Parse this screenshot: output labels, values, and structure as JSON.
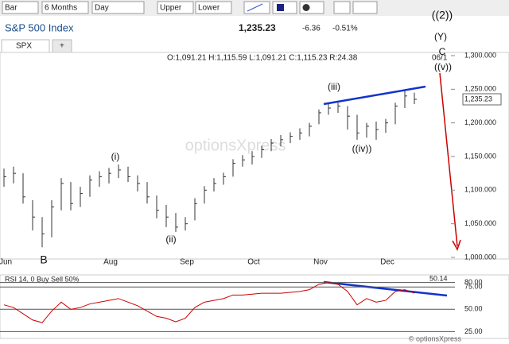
{
  "toolbar": {
    "dropdowns": [
      "Bar",
      "6 Months",
      "Day",
      "Upper",
      "Lower"
    ]
  },
  "header": {
    "title": "S&P 500 Index",
    "last": "1,235.23",
    "change": "-6.36",
    "change_pct": "-0.51%",
    "tab": "SPX",
    "tab_add": "+"
  },
  "watermark": "optionsXpress",
  "footer": "© optionsXpress",
  "chart_data": [
    {
      "type": "ohlc",
      "info": "O:1,091.21 H:1,115.59 L:1,091.21 C:1,115.23 R:24.38",
      "date_label": "06/1",
      "color": "#333333",
      "categories": [
        "Jun",
        null,
        null,
        null,
        null,
        null,
        null,
        null,
        null,
        null,
        null,
        "Aug",
        null,
        null,
        null,
        null,
        null,
        null,
        null,
        "Sep",
        null,
        null,
        null,
        null,
        null,
        null,
        "Oct",
        null,
        null,
        null,
        null,
        null,
        null,
        "Nov",
        null,
        null,
        null,
        null,
        null,
        null,
        "Dec",
        null,
        null,
        null
      ],
      "high": [
        1132,
        1135,
        1125,
        1085,
        1060,
        1085,
        1118,
        1112,
        1105,
        1122,
        1128,
        1133,
        1138,
        1135,
        1122,
        1112,
        1092,
        1078,
        1066,
        1060,
        1088,
        1106,
        1118,
        1126,
        1146,
        1152,
        1158,
        1166,
        1176,
        1182,
        1186,
        1192,
        1200,
        1220,
        1228,
        1230,
        1225,
        1212,
        1200,
        1202,
        1206,
        1230,
        1248,
        1245
      ],
      "low": [
        1105,
        1110,
        1080,
        1040,
        1015,
        1030,
        1070,
        1070,
        1075,
        1090,
        1105,
        1110,
        1118,
        1112,
        1098,
        1080,
        1058,
        1045,
        1038,
        1040,
        1055,
        1080,
        1098,
        1108,
        1120,
        1135,
        1138,
        1148,
        1158,
        1165,
        1170,
        1175,
        1180,
        1198,
        1212,
        1215,
        1190,
        1175,
        1178,
        1175,
        1185,
        1198,
        1222,
        1228
      ],
      "close": [
        1120,
        1125,
        1090,
        1060,
        1035,
        1075,
        1110,
        1080,
        1095,
        1115,
        1120,
        1125,
        1130,
        1120,
        1110,
        1090,
        1070,
        1060,
        1045,
        1050,
        1080,
        1100,
        1110,
        1120,
        1140,
        1145,
        1150,
        1160,
        1170,
        1175,
        1180,
        1185,
        1195,
        1215,
        1222,
        1225,
        1210,
        1185,
        1195,
        1190,
        1200,
        1225,
        1240,
        1235
      ],
      "ylim": [
        1000,
        1300
      ],
      "yticks": [
        {
          "value": 1000,
          "label": "1,000.000"
        },
        {
          "value": 1050,
          "label": "1,050.000"
        },
        {
          "value": 1100,
          "label": "1,100.000"
        },
        {
          "value": 1150,
          "label": "1,150.000"
        },
        {
          "value": 1200,
          "label": "1,200.000"
        },
        {
          "value": 1250,
          "label": "1,250.000"
        },
        {
          "value": 1300,
          "label": "1,300.000"
        }
      ],
      "annotations": [
        "((2))",
        "(Y)",
        "C",
        "((v))",
        "(i)",
        "(ii)",
        "(iii)",
        "((iv))",
        "B"
      ]
    },
    {
      "type": "line",
      "title": "RSI 14, 0 Buy Sell 50%",
      "last_label": "50.14",
      "color": "#cc0000",
      "values": [
        55,
        52,
        45,
        38,
        35,
        48,
        58,
        50,
        52,
        56,
        58,
        60,
        62,
        58,
        54,
        48,
        42,
        40,
        36,
        40,
        52,
        58,
        60,
        62,
        66,
        66,
        67,
        68,
        68,
        68,
        69,
        70,
        72,
        78,
        80,
        78,
        70,
        55,
        62,
        58,
        60,
        70,
        72,
        68
      ],
      "ylim": [
        20,
        85
      ],
      "yticks": [
        {
          "value": 80,
          "label": "80.00"
        },
        {
          "value": 75,
          "label": "75.00"
        },
        {
          "value": 50,
          "label": "50.00"
        },
        {
          "value": 25,
          "label": "25.00"
        }
      ]
    }
  ]
}
